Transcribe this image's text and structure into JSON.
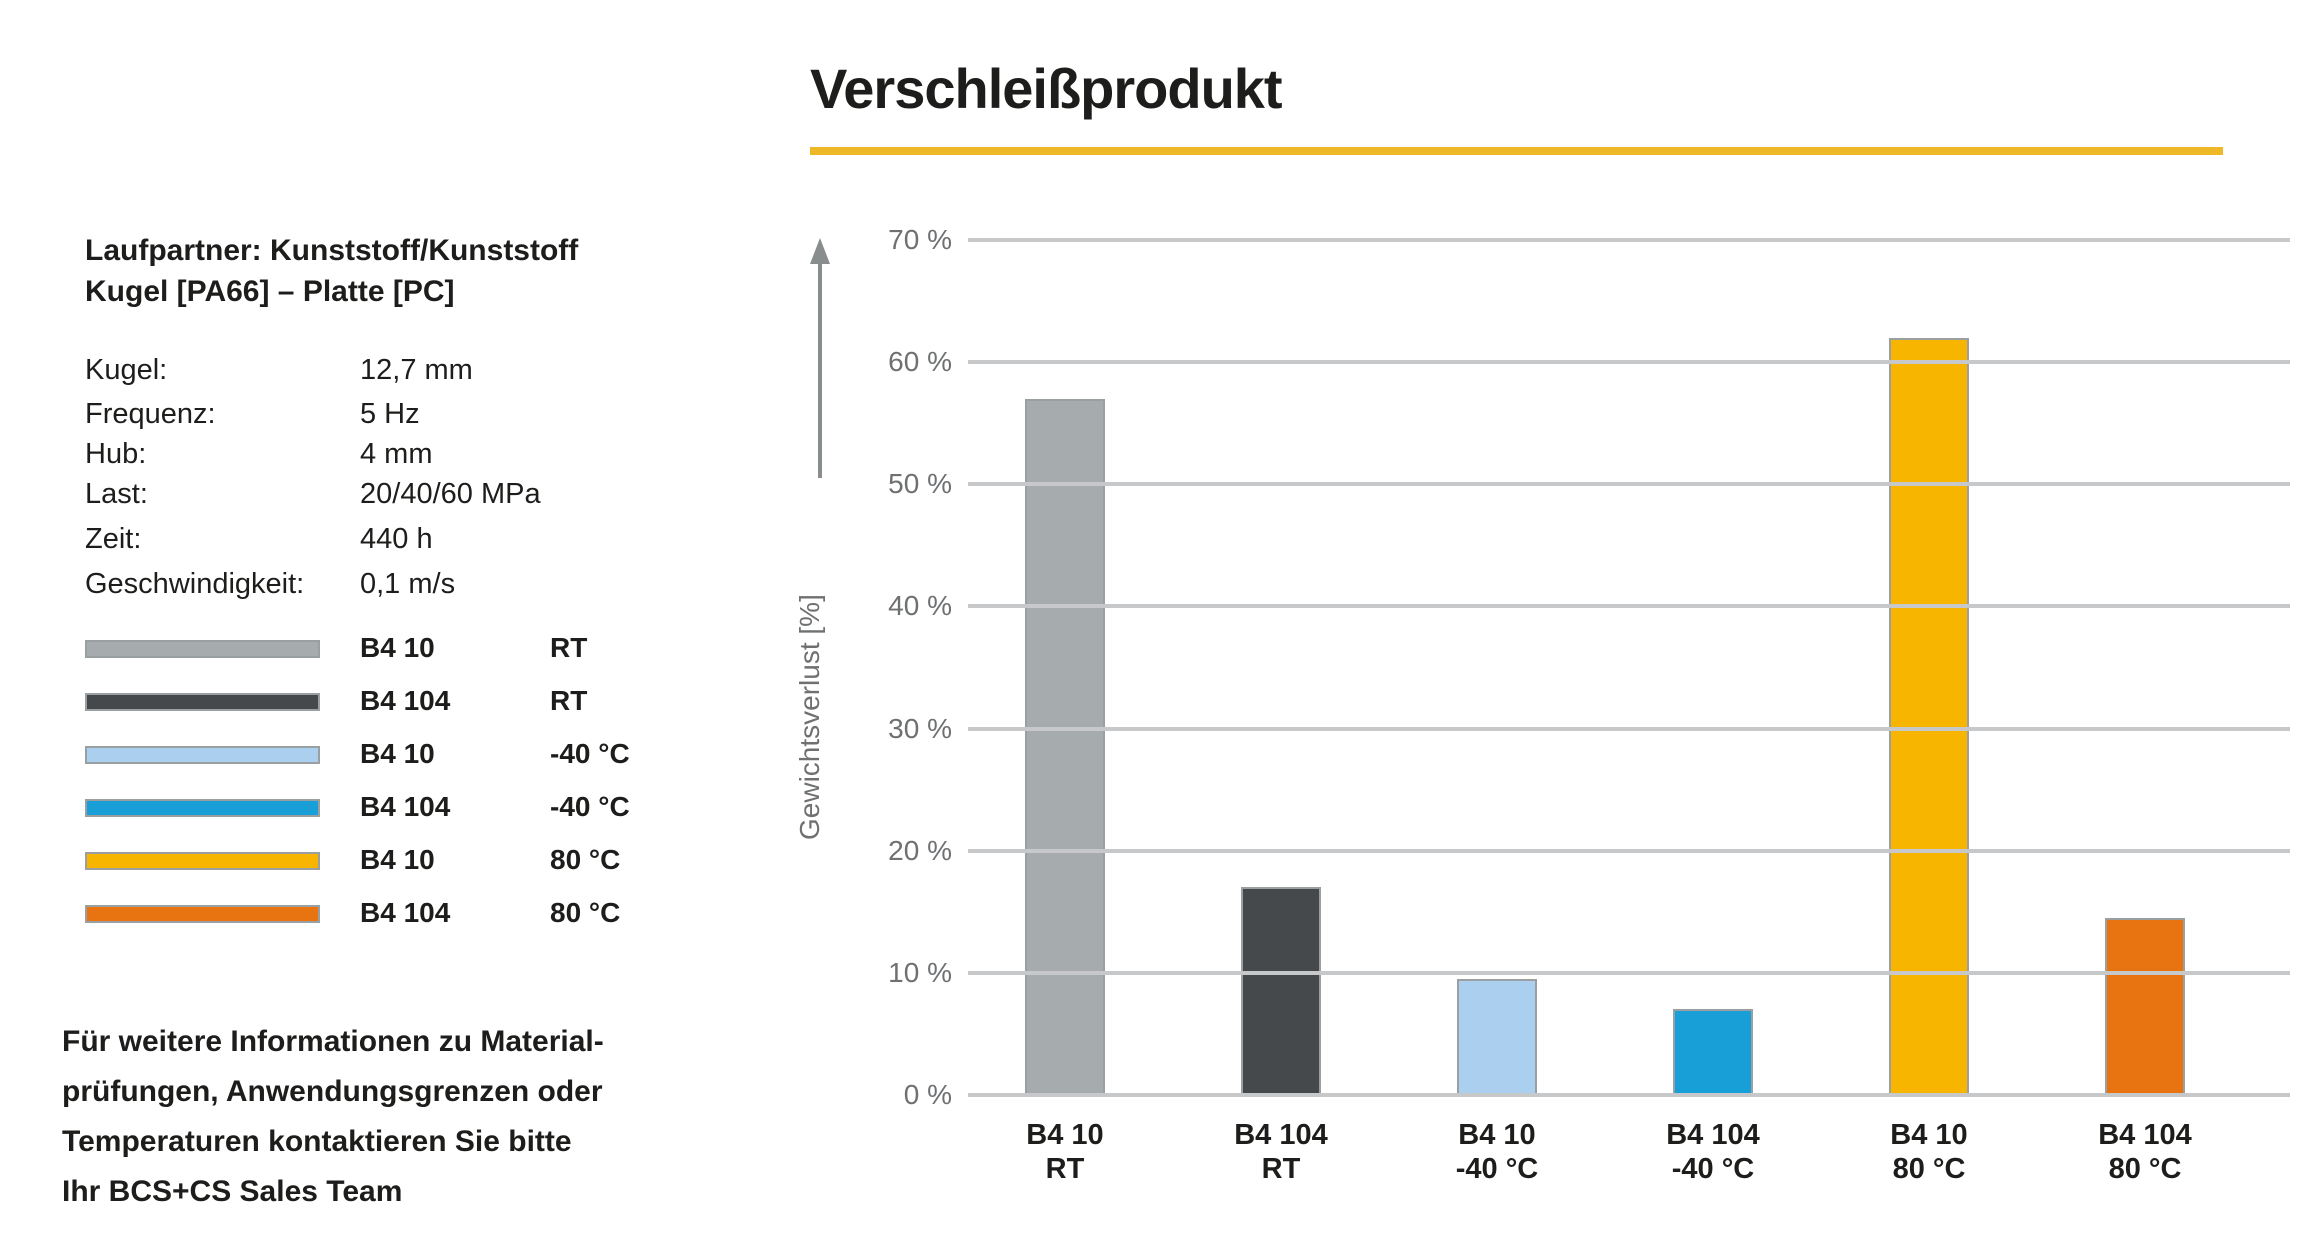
{
  "title": "Verschleißprodukt",
  "accent_color": "#eeb829",
  "info_panel": {
    "header_line1": "Laufpartner: Kunststoff/Kunststoff",
    "header_line2": "Kugel [PA66] – Platte [PC]",
    "params": [
      {
        "label": "Kugel:",
        "value": "12,7 mm"
      },
      {
        "label": "Frequenz:",
        "value": "5 Hz"
      },
      {
        "label": "Hub:",
        "value": "4 mm"
      },
      {
        "label": "Last:",
        "value": "20/40/60 MPa"
      },
      {
        "label": "Zeit:",
        "value": "440 h"
      },
      {
        "label": "Geschwindigkeit:",
        "value": "0,1 m/s"
      }
    ],
    "legend": [
      {
        "color": "#a6acae",
        "code": "B4 10",
        "temp": "RT"
      },
      {
        "color": "#45494c",
        "code": "B4 104",
        "temp": "RT"
      },
      {
        "color": "#abd0ef",
        "code": "B4 10",
        "temp": "-40 °C"
      },
      {
        "color": "#189fd8",
        "code": "B4 104",
        "temp": "-40 °C"
      },
      {
        "color": "#f8b500",
        "code": "B4 10",
        "temp": "80 °C"
      },
      {
        "color": "#e87411",
        "code": "B4 104",
        "temp": "80 °C"
      }
    ],
    "footnote_lines": [
      "Für weitere Informationen zu Material-",
      "prüfungen, Anwendungsgrenzen oder",
      "Temperaturen kontaktieren Sie bitte",
      "Ihr BCS+CS Sales Team"
    ]
  },
  "chart_data": {
    "type": "bar",
    "title": "Verschleißprodukt",
    "categories": [
      {
        "code": "B4 10",
        "temp": "RT"
      },
      {
        "code": "B4 104",
        "temp": "RT"
      },
      {
        "code": "B4 10",
        "temp": "-40 °C"
      },
      {
        "code": "B4 104",
        "temp": "-40 °C"
      },
      {
        "code": "B4 10",
        "temp": "80 °C"
      },
      {
        "code": "B4 104",
        "temp": "80 °C"
      }
    ],
    "values": [
      57,
      17,
      9.5,
      7,
      62,
      14.5
    ],
    "colors": [
      "#a6acae",
      "#45494c",
      "#abd0ef",
      "#189fd8",
      "#f8b500",
      "#e87411"
    ],
    "xlabel": "",
    "ylabel": "Gewichtsverlust [%]",
    "ylim": [
      0,
      70
    ],
    "ytick_step": 10,
    "ytick_suffix": " %",
    "grid": true,
    "legend_position": "left"
  }
}
